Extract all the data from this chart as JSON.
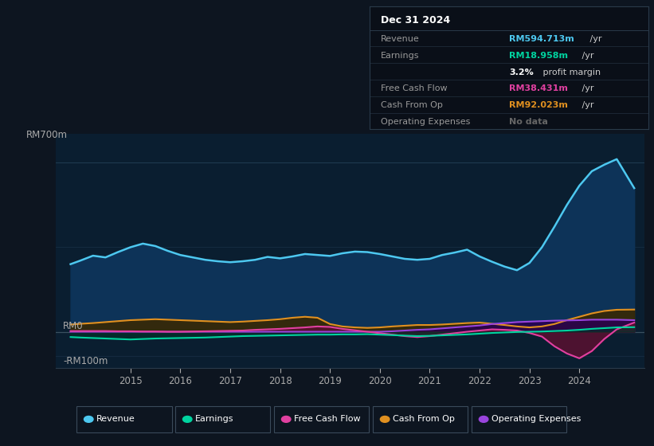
{
  "bg_color": "#0d1520",
  "plot_bg_color": "#0a1e30",
  "text_color": "#aaaaaa",
  "title_text_color": "#ffffff",
  "ylim": [
    -150,
    820
  ],
  "y_rm700": 700,
  "y_rm0": 0,
  "y_rm100n": -100,
  "xmin": 2013.5,
  "xmax": 2025.3,
  "xticks": [
    2015,
    2016,
    2017,
    2018,
    2019,
    2020,
    2021,
    2022,
    2023,
    2024
  ],
  "hlines": [
    {
      "y": 700,
      "color": "#1e3a50",
      "lw": 0.8
    },
    {
      "y": 350,
      "color": "#162d42",
      "lw": 0.6
    },
    {
      "y": 0,
      "color": "#3a5060",
      "lw": 0.9
    },
    {
      "y": -100,
      "color": "#162d42",
      "lw": 0.6
    }
  ],
  "legend_items": [
    {
      "label": "Revenue",
      "color": "#4dc8f0"
    },
    {
      "label": "Earnings",
      "color": "#00d4a0"
    },
    {
      "label": "Free Cash Flow",
      "color": "#e040a0"
    },
    {
      "label": "Cash From Op",
      "color": "#e09020"
    },
    {
      "label": "Operating Expenses",
      "color": "#9944dd"
    }
  ],
  "infobox": {
    "title": "Dec 31 2024",
    "title_color": "#ffffff",
    "bg_color": "#0a0f18",
    "border_color": "#2a3a4a",
    "label_color": "#999999",
    "unit_color": "#cccccc",
    "rows": [
      {
        "label": "Revenue",
        "value": "RM594.713m",
        "unit": " /yr",
        "value_color": "#4dc8f0"
      },
      {
        "label": "Earnings",
        "value": "RM18.958m",
        "unit": " /yr",
        "value_color": "#00d4a0"
      },
      {
        "label": "",
        "value": "3.2%",
        "unit": " profit margin",
        "value_color": "#ffffff"
      },
      {
        "label": "Free Cash Flow",
        "value": "RM38.431m",
        "unit": " /yr",
        "value_color": "#e040a0"
      },
      {
        "label": "Cash From Op",
        "value": "RM92.023m",
        "unit": " /yr",
        "value_color": "#e09020"
      },
      {
        "label": "Operating Expenses",
        "value": "No data",
        "unit": "",
        "value_color": "#666666"
      }
    ]
  },
  "revenue": {
    "color": "#4dc8f0",
    "fill_color": "#0d3358",
    "x": [
      2013.8,
      2014.0,
      2014.25,
      2014.5,
      2014.75,
      2015.0,
      2015.25,
      2015.5,
      2015.75,
      2016.0,
      2016.25,
      2016.5,
      2016.75,
      2017.0,
      2017.25,
      2017.5,
      2017.75,
      2018.0,
      2018.25,
      2018.5,
      2018.75,
      2019.0,
      2019.25,
      2019.5,
      2019.75,
      2020.0,
      2020.25,
      2020.5,
      2020.75,
      2021.0,
      2021.25,
      2021.5,
      2021.75,
      2022.0,
      2022.25,
      2022.5,
      2022.75,
      2023.0,
      2023.25,
      2023.5,
      2023.75,
      2024.0,
      2024.25,
      2024.5,
      2024.75,
      2025.1
    ],
    "y": [
      280,
      295,
      315,
      308,
      330,
      350,
      365,
      355,
      335,
      318,
      308,
      298,
      292,
      288,
      292,
      298,
      310,
      304,
      312,
      322,
      318,
      314,
      325,
      332,
      330,
      322,
      312,
      302,
      298,
      302,
      318,
      328,
      340,
      312,
      290,
      270,
      255,
      285,
      350,
      435,
      525,
      605,
      665,
      692,
      715,
      595
    ]
  },
  "earnings": {
    "color": "#00d4a0",
    "fill_color": "#003328",
    "x": [
      2013.8,
      2014.0,
      2014.25,
      2014.5,
      2014.75,
      2015.0,
      2015.25,
      2015.5,
      2015.75,
      2016.0,
      2016.25,
      2016.5,
      2016.75,
      2017.0,
      2017.25,
      2017.5,
      2017.75,
      2018.0,
      2018.25,
      2018.5,
      2018.75,
      2019.0,
      2019.25,
      2019.5,
      2019.75,
      2020.0,
      2020.25,
      2020.5,
      2020.75,
      2021.0,
      2021.25,
      2021.5,
      2021.75,
      2022.0,
      2022.25,
      2022.5,
      2022.75,
      2023.0,
      2023.25,
      2023.5,
      2023.75,
      2024.0,
      2024.25,
      2024.5,
      2024.75,
      2025.1
    ],
    "y": [
      -22,
      -24,
      -26,
      -28,
      -30,
      -32,
      -30,
      -28,
      -27,
      -26,
      -25,
      -24,
      -22,
      -20,
      -18,
      -17,
      -16,
      -15,
      -14,
      -13,
      -12,
      -12,
      -11,
      -11,
      -10,
      -12,
      -14,
      -16,
      -18,
      -17,
      -15,
      -13,
      -11,
      -8,
      -5,
      -3,
      -1,
      0,
      1,
      3,
      5,
      8,
      12,
      15,
      18,
      19
    ]
  },
  "free_cash_flow": {
    "color": "#e040a0",
    "fill_color": "#5a1030",
    "x": [
      2013.8,
      2014.0,
      2014.25,
      2014.5,
      2014.75,
      2015.0,
      2015.25,
      2015.5,
      2015.75,
      2016.0,
      2016.25,
      2016.5,
      2016.75,
      2017.0,
      2017.25,
      2017.5,
      2017.75,
      2018.0,
      2018.25,
      2018.5,
      2018.75,
      2019.0,
      2019.25,
      2019.5,
      2019.75,
      2020.0,
      2020.25,
      2020.5,
      2020.75,
      2021.0,
      2021.25,
      2021.5,
      2021.75,
      2022.0,
      2022.25,
      2022.5,
      2022.75,
      2023.0,
      2023.25,
      2023.5,
      2023.75,
      2024.0,
      2024.25,
      2024.5,
      2024.75,
      2025.1
    ],
    "y": [
      3,
      3,
      3,
      3,
      2,
      2,
      1,
      1,
      0,
      0,
      1,
      2,
      3,
      4,
      5,
      8,
      10,
      12,
      15,
      18,
      22,
      20,
      12,
      6,
      0,
      -6,
      -12,
      -18,
      -22,
      -18,
      -12,
      -6,
      0,
      5,
      10,
      8,
      5,
      -5,
      -20,
      -60,
      -90,
      -110,
      -80,
      -30,
      10,
      38
    ]
  },
  "cash_from_op": {
    "color": "#e09020",
    "fill_color": "#3a2800",
    "x": [
      2013.8,
      2014.0,
      2014.25,
      2014.5,
      2014.75,
      2015.0,
      2015.25,
      2015.5,
      2015.75,
      2016.0,
      2016.25,
      2016.5,
      2016.75,
      2017.0,
      2017.25,
      2017.5,
      2017.75,
      2018.0,
      2018.25,
      2018.5,
      2018.75,
      2019.0,
      2019.25,
      2019.5,
      2019.75,
      2020.0,
      2020.25,
      2020.5,
      2020.75,
      2021.0,
      2021.25,
      2021.5,
      2021.75,
      2022.0,
      2022.25,
      2022.5,
      2022.75,
      2023.0,
      2023.25,
      2023.5,
      2023.75,
      2024.0,
      2024.25,
      2024.5,
      2024.75,
      2025.1
    ],
    "y": [
      30,
      33,
      36,
      40,
      44,
      48,
      50,
      52,
      50,
      48,
      46,
      44,
      42,
      40,
      42,
      45,
      48,
      52,
      58,
      62,
      58,
      32,
      22,
      18,
      16,
      18,
      22,
      25,
      28,
      28,
      30,
      33,
      36,
      38,
      33,
      28,
      22,
      18,
      22,
      32,
      48,
      62,
      76,
      86,
      91,
      92
    ]
  },
  "op_expenses": {
    "color": "#9944dd",
    "fill_color": "#2a0050",
    "x": [
      2013.8,
      2014.0,
      2014.25,
      2014.5,
      2014.75,
      2015.0,
      2015.25,
      2015.5,
      2015.75,
      2016.0,
      2016.25,
      2016.5,
      2016.75,
      2017.0,
      2017.25,
      2017.5,
      2017.75,
      2018.0,
      2018.25,
      2018.5,
      2018.75,
      2019.0,
      2019.25,
      2019.5,
      2019.75,
      2020.0,
      2020.25,
      2020.5,
      2020.75,
      2021.0,
      2021.25,
      2021.5,
      2021.75,
      2022.0,
      2022.25,
      2022.5,
      2022.75,
      2023.0,
      2023.25,
      2023.5,
      2023.75,
      2024.0,
      2024.25,
      2024.5,
      2024.75,
      2025.1
    ],
    "y": [
      0,
      0,
      0,
      0,
      0,
      0,
      0,
      0,
      0,
      0,
      0,
      0,
      0,
      0,
      0,
      0,
      0,
      0,
      0,
      0,
      0,
      0,
      0,
      0,
      0,
      0,
      2,
      5,
      8,
      10,
      14,
      18,
      22,
      26,
      32,
      36,
      40,
      42,
      44,
      46,
      47,
      48,
      50,
      50,
      50,
      48
    ]
  }
}
